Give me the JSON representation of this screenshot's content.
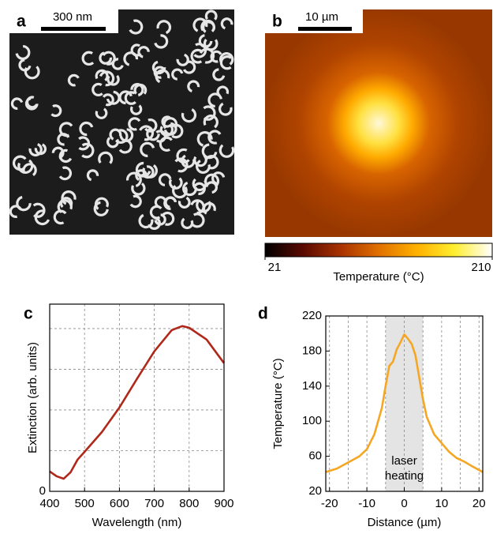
{
  "chart_data": [
    {
      "type": "image",
      "panel": "a",
      "scalebar": "300 nm"
    },
    {
      "type": "heatmap",
      "panel": "b",
      "scalebar": "10 µm",
      "clim": [
        21,
        210
      ],
      "cticks": [
        21,
        210
      ],
      "clabel": "Temperature (°C)",
      "colormap": [
        "#000000",
        "#5a0a00",
        "#a83200",
        "#e07000",
        "#ffb000",
        "#ffee30",
        "#ffffff"
      ]
    },
    {
      "type": "line",
      "panel": "c",
      "xlabel": "Wavelength  (nm)",
      "ylabel": "Extinction  (arb. units)",
      "xlim": [
        400,
        900
      ],
      "xticks": [
        400,
        500,
        600,
        700,
        800,
        900
      ],
      "xgrid": [
        400,
        500,
        600,
        700,
        800,
        900
      ],
      "ylim": [
        0,
        4.6
      ],
      "yticks": [
        0
      ],
      "ygrid": [
        1,
        2,
        3,
        4
      ],
      "color": "#b0281a",
      "x": [
        400,
        420,
        440,
        460,
        480,
        500,
        550,
        600,
        650,
        700,
        750,
        780,
        800,
        850,
        900
      ],
      "values": [
        0.49,
        0.37,
        0.31,
        0.47,
        0.78,
        0.97,
        1.46,
        2.06,
        2.76,
        3.44,
        3.96,
        4.06,
        4.02,
        3.73,
        3.15
      ]
    },
    {
      "type": "line",
      "panel": "d",
      "xlabel": "Distance  (µm)",
      "ylabel": "Temperature  (°C)",
      "xlim": [
        -21,
        21
      ],
      "xticks": [
        -20,
        -10,
        0,
        10,
        20
      ],
      "xgrid": [
        -20,
        -15,
        -10,
        -5,
        0,
        5,
        10,
        15,
        20
      ],
      "ylim": [
        20,
        220
      ],
      "yticks": [
        20,
        60,
        100,
        140,
        180,
        220
      ],
      "ygrid": [],
      "color": "#f5a623",
      "band": [
        -5,
        5
      ],
      "band_label": [
        "laser",
        "heating"
      ],
      "x": [
        -21,
        -18,
        -15,
        -12,
        -10,
        -8,
        -6,
        -5,
        -4,
        -3,
        -2,
        -1,
        0,
        1,
        2,
        3,
        4,
        5,
        6,
        8,
        10,
        12,
        14,
        16,
        18,
        21
      ],
      "values": [
        42,
        46,
        53,
        60,
        68,
        85,
        115,
        140,
        163,
        168,
        182,
        190,
        199,
        194,
        188,
        175,
        150,
        125,
        105,
        85,
        75,
        65,
        58,
        54,
        49,
        42
      ]
    }
  ]
}
